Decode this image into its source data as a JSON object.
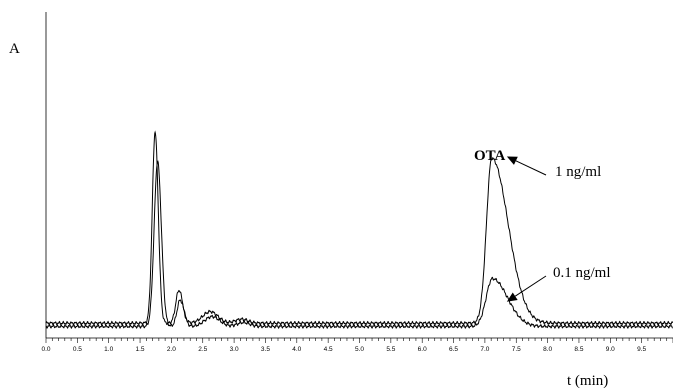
{
  "chart_data": {
    "type": "line",
    "title": "",
    "ylabel": "A",
    "xlabel": "t (min)",
    "xlim": [
      0,
      10
    ],
    "ylim": [
      0,
      1
    ],
    "grid": false,
    "x_tick_labels": [
      "0.0",
      "0.5",
      "1.0",
      "1.5",
      "2.0",
      "2.5",
      "3.0",
      "3.5",
      "4.0",
      "4.5",
      "5.0",
      "5.5",
      "6.0",
      "6.5",
      "7.0",
      "7.5",
      "8.0",
      "8.5",
      "9.0",
      "9.5"
    ],
    "x_major_step": 0.5,
    "x_minor_step": 0.1,
    "series": [
      {
        "name": "1 ng/ml",
        "color": "#000000",
        "baseline": 0.045,
        "peaks": [
          {
            "t": 1.74,
            "h": 0.58,
            "sl": 0.045,
            "sr": 0.05
          },
          {
            "t": 2.12,
            "h": 0.1,
            "sl": 0.05,
            "sr": 0.06
          },
          {
            "t": 2.62,
            "h": 0.035,
            "sl": 0.12,
            "sr": 0.12
          },
          {
            "t": 3.12,
            "h": 0.012,
            "sl": 0.1,
            "sr": 0.1
          },
          {
            "t": 7.11,
            "h": 0.5,
            "sl": 0.085,
            "sr": 0.26
          }
        ]
      },
      {
        "name": "0.1 ng/ml",
        "color": "#000000",
        "baseline": 0.035,
        "peaks": [
          {
            "t": 1.78,
            "h": 0.5,
            "sl": 0.055,
            "sr": 0.06
          },
          {
            "t": 2.14,
            "h": 0.08,
            "sl": 0.05,
            "sr": 0.06
          },
          {
            "t": 2.65,
            "h": 0.03,
            "sl": 0.12,
            "sr": 0.12
          },
          {
            "t": 3.15,
            "h": 0.012,
            "sl": 0.1,
            "sr": 0.1
          },
          {
            "t": 7.12,
            "h": 0.145,
            "sl": 0.1,
            "sr": 0.24
          }
        ]
      }
    ],
    "annotations": [
      {
        "text": "OTA",
        "bold": true
      },
      {
        "text": "1 ng/ml",
        "arrow_to": {
          "x": 7.35,
          "y": 0.55
        }
      },
      {
        "text": "0.1 ng/ml",
        "arrow_to": {
          "x": 7.35,
          "y": 0.11
        }
      }
    ]
  }
}
